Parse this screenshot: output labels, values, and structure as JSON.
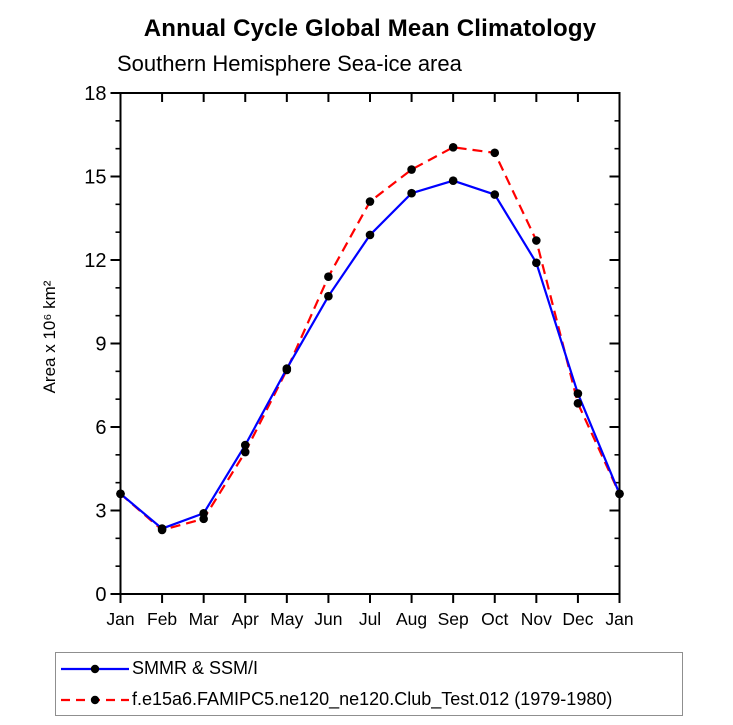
{
  "chart_data": {
    "type": "line",
    "title": "Annual Cycle Global Mean Climatology",
    "subtitle": "Southern Hemisphere Sea-ice area",
    "ylabel": "Area x 10⁶ km²",
    "xlabel": "",
    "categories": [
      "Jan",
      "Feb",
      "Mar",
      "Apr",
      "May",
      "Jun",
      "Jul",
      "Aug",
      "Sep",
      "Oct",
      "Nov",
      "Dec",
      "Jan"
    ],
    "ylim": [
      0,
      18
    ],
    "yticks_major": [
      0,
      3,
      6,
      9,
      12,
      15,
      18
    ],
    "ytick_minor_step": 1,
    "grid": false,
    "legend_position": "bottom-left-box",
    "axis_color": "#000000",
    "marker_color": "#000000",
    "series": [
      {
        "name": "SMMR & SSM/I",
        "color": "#0000ff",
        "style": "solid",
        "marker": "circle",
        "values": [
          3.6,
          2.35,
          2.9,
          5.35,
          8.1,
          10.7,
          12.9,
          14.4,
          14.85,
          14.35,
          11.9,
          7.2,
          3.6
        ]
      },
      {
        "name": "f.e15a6.FAMIPC5.ne120_ne120.Club_Test.012 (1979-1980)",
        "color": "#ff0000",
        "style": "dashed",
        "marker": "circle",
        "values": [
          3.6,
          2.3,
          2.7,
          5.1,
          8.05,
          11.4,
          14.1,
          15.25,
          16.05,
          15.85,
          12.7,
          6.85,
          3.6
        ]
      }
    ]
  }
}
